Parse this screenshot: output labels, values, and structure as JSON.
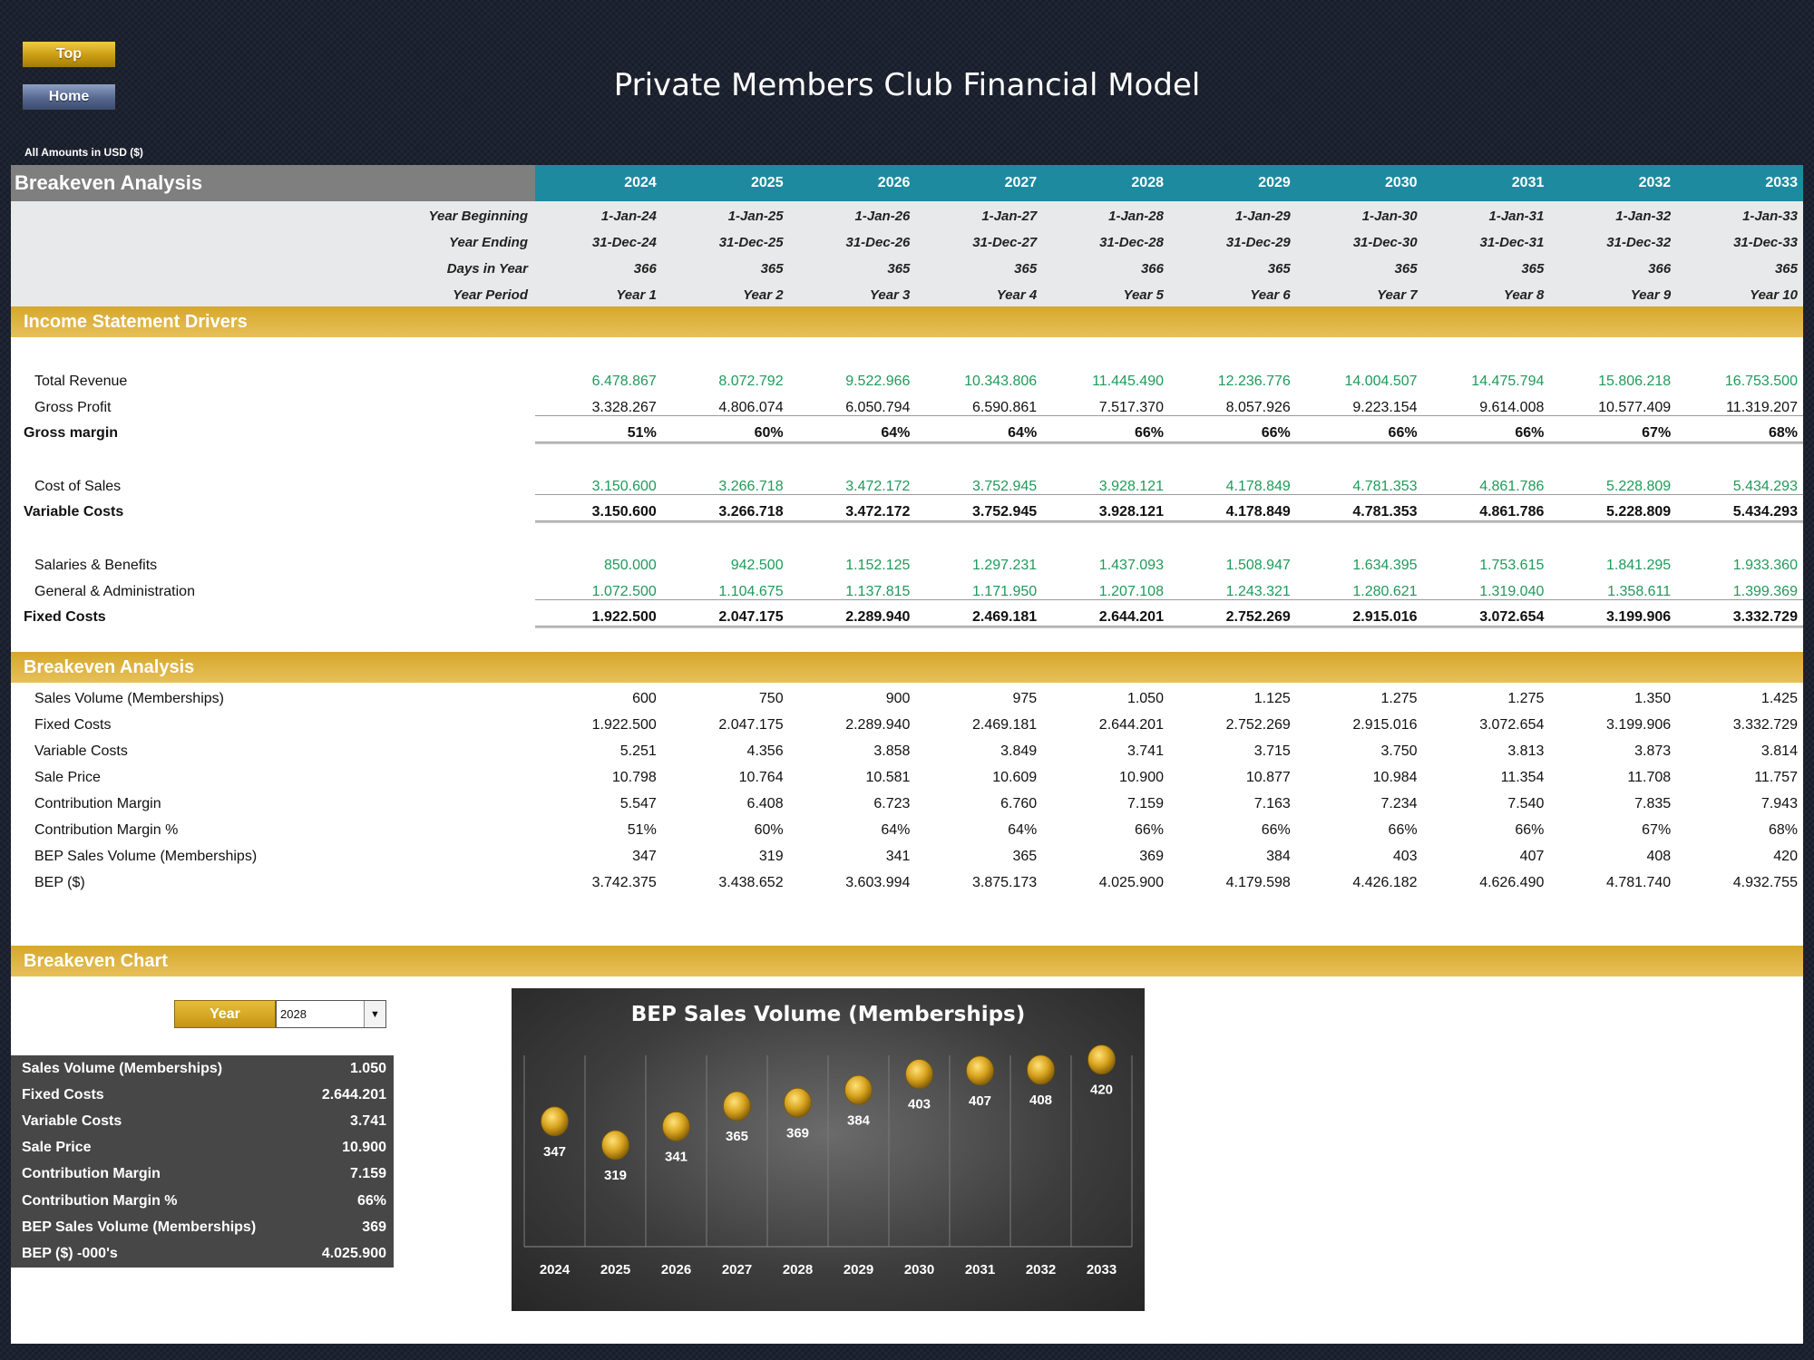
{
  "nav": {
    "top_label": "Top",
    "home_label": "Home"
  },
  "title": "Private Members Club Financial Model",
  "amounts_note": "All Amounts in  USD ($)",
  "table": {
    "header_label": "Breakeven Analysis",
    "years": [
      "2024",
      "2025",
      "2026",
      "2027",
      "2028",
      "2029",
      "2030",
      "2031",
      "2032",
      "2033"
    ],
    "year_beginning": {
      "label": "Year Beginning",
      "values": [
        "1-Jan-24",
        "1-Jan-25",
        "1-Jan-26",
        "1-Jan-27",
        "1-Jan-28",
        "1-Jan-29",
        "1-Jan-30",
        "1-Jan-31",
        "1-Jan-32",
        "1-Jan-33"
      ]
    },
    "year_ending": {
      "label": "Year Ending",
      "values": [
        "31-Dec-24",
        "31-Dec-25",
        "31-Dec-26",
        "31-Dec-27",
        "31-Dec-28",
        "31-Dec-29",
        "31-Dec-30",
        "31-Dec-31",
        "31-Dec-32",
        "31-Dec-33"
      ]
    },
    "days_in_year": {
      "label": "Days in Year",
      "values": [
        "366",
        "365",
        "365",
        "365",
        "366",
        "365",
        "365",
        "365",
        "366",
        "365"
      ]
    },
    "year_period": {
      "label": "Year Period",
      "values": [
        "Year 1",
        "Year 2",
        "Year 3",
        "Year 4",
        "Year 5",
        "Year 6",
        "Year 7",
        "Year 8",
        "Year 9",
        "Year 10"
      ]
    }
  },
  "income_drivers": {
    "section_title": "Income Statement Drivers",
    "total_revenue": {
      "label": "Total Revenue",
      "values": [
        "6.478.867",
        "8.072.792",
        "9.522.966",
        "10.343.806",
        "11.445.490",
        "12.236.776",
        "14.004.507",
        "14.475.794",
        "15.806.218",
        "16.753.500"
      ]
    },
    "gross_profit": {
      "label": "Gross Profit",
      "values": [
        "3.328.267",
        "4.806.074",
        "6.050.794",
        "6.590.861",
        "7.517.370",
        "8.057.926",
        "9.223.154",
        "9.614.008",
        "10.577.409",
        "11.319.207"
      ]
    },
    "gross_margin": {
      "label": "Gross margin",
      "values": [
        "51%",
        "60%",
        "64%",
        "64%",
        "66%",
        "66%",
        "66%",
        "66%",
        "67%",
        "68%"
      ]
    },
    "cost_of_sales": {
      "label": "Cost of Sales",
      "values": [
        "3.150.600",
        "3.266.718",
        "3.472.172",
        "3.752.945",
        "3.928.121",
        "4.178.849",
        "4.781.353",
        "4.861.786",
        "5.228.809",
        "5.434.293"
      ]
    },
    "variable_costs": {
      "label": "Variable Costs",
      "values": [
        "3.150.600",
        "3.266.718",
        "3.472.172",
        "3.752.945",
        "3.928.121",
        "4.178.849",
        "4.781.353",
        "4.861.786",
        "5.228.809",
        "5.434.293"
      ]
    },
    "salaries": {
      "label": "Salaries & Benefits",
      "values": [
        "850.000",
        "942.500",
        "1.152.125",
        "1.297.231",
        "1.437.093",
        "1.508.947",
        "1.634.395",
        "1.753.615",
        "1.841.295",
        "1.933.360"
      ]
    },
    "general_admin": {
      "label": "General & Administration",
      "values": [
        "1.072.500",
        "1.104.675",
        "1.137.815",
        "1.171.950",
        "1.207.108",
        "1.243.321",
        "1.280.621",
        "1.319.040",
        "1.358.611",
        "1.399.369"
      ]
    },
    "fixed_costs": {
      "label": "Fixed Costs",
      "values": [
        "1.922.500",
        "2.047.175",
        "2.289.940",
        "2.469.181",
        "2.644.201",
        "2.752.269",
        "2.915.016",
        "3.072.654",
        "3.199.906",
        "3.332.729"
      ]
    }
  },
  "breakeven": {
    "section_title": "Breakeven Analysis",
    "sales_volume": {
      "label": "Sales Volume (Memberships)",
      "values": [
        "600",
        "750",
        "900",
        "975",
        "1.050",
        "1.125",
        "1.275",
        "1.275",
        "1.350",
        "1.425"
      ]
    },
    "fixed_costs": {
      "label": "Fixed Costs",
      "values": [
        "1.922.500",
        "2.047.175",
        "2.289.940",
        "2.469.181",
        "2.644.201",
        "2.752.269",
        "2.915.016",
        "3.072.654",
        "3.199.906",
        "3.332.729"
      ]
    },
    "variable_costs": {
      "label": "Variable Costs",
      "values": [
        "5.251",
        "4.356",
        "3.858",
        "3.849",
        "3.741",
        "3.715",
        "3.750",
        "3.813",
        "3.873",
        "3.814"
      ]
    },
    "sale_price": {
      "label": "Sale Price",
      "values": [
        "10.798",
        "10.764",
        "10.581",
        "10.609",
        "10.900",
        "10.877",
        "10.984",
        "11.354",
        "11.708",
        "11.757"
      ]
    },
    "contribution_margin": {
      "label": "Contribution Margin",
      "values": [
        "5.547",
        "6.408",
        "6.723",
        "6.760",
        "7.159",
        "7.163",
        "7.234",
        "7.540",
        "7.835",
        "7.943"
      ]
    },
    "contribution_margin_pct": {
      "label": "Contribution Margin %",
      "values": [
        "51%",
        "60%",
        "64%",
        "64%",
        "66%",
        "66%",
        "66%",
        "66%",
        "67%",
        "68%"
      ]
    },
    "bep_volume": {
      "label": "BEP Sales Volume (Memberships)",
      "values": [
        "347",
        "319",
        "341",
        "365",
        "369",
        "384",
        "403",
        "407",
        "408",
        "420"
      ]
    },
    "bep_dollars": {
      "label": "BEP ($)",
      "values": [
        "3.742.375",
        "3.438.652",
        "3.603.994",
        "3.875.173",
        "4.025.900",
        "4.179.598",
        "4.426.182",
        "4.626.490",
        "4.781.740",
        "4.932.755"
      ]
    }
  },
  "chart_section": {
    "section_title": "Breakeven Chart",
    "year_button_label": "Year",
    "selected_year": "2028",
    "summary": [
      {
        "label": "Sales Volume (Memberships)",
        "value": "1.050"
      },
      {
        "label": "Fixed Costs",
        "value": "2.644.201"
      },
      {
        "label": "Variable Costs",
        "value": "3.741"
      },
      {
        "label": "Sale Price",
        "value": "10.900"
      },
      {
        "label": "Contribution Margin",
        "value": "7.159"
      },
      {
        "label": "Contribution Margin %",
        "value": "66%"
      },
      {
        "label": "BEP Sales Volume (Memberships)",
        "value": "369"
      },
      {
        "label": "BEP ($) -000's",
        "value": "4.025.900"
      }
    ]
  },
  "chart_data": {
    "type": "scatter",
    "title": "BEP Sales Volume (Memberships)",
    "categories": [
      "2024",
      "2025",
      "2026",
      "2027",
      "2028",
      "2029",
      "2030",
      "2031",
      "2032",
      "2033"
    ],
    "values": [
      347,
      319,
      341,
      365,
      369,
      384,
      403,
      407,
      408,
      420
    ],
    "marker_color": "#d9a520",
    "background": "#3d3d3d",
    "grid": "vertical"
  }
}
